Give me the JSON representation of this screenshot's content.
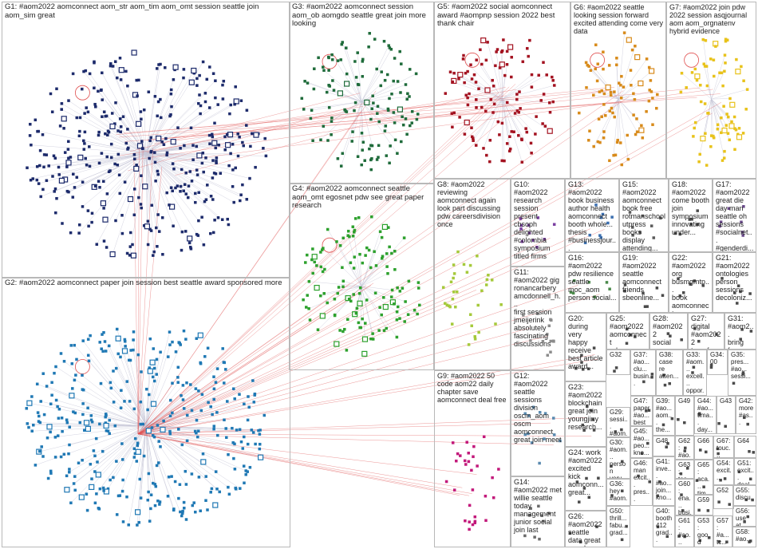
{
  "graph": {
    "edge_color": "#e05050",
    "groups": [
      {
        "id": "G1",
        "label": "G1: #aom2022 aomconnect aom_str aom_tim aom_omt session seattle join aom_sim great",
        "color": "#1c2a6b"
      },
      {
        "id": "G2",
        "label": "G2: #aom2022 aomconnect paper join session best seattle award sponsored more",
        "color": "#1f78b4"
      },
      {
        "id": "G3",
        "label": "G3: #aom2022 aomconnect session aom_ob aomgdo seattle great join more looking",
        "color": "#1e6b3a"
      },
      {
        "id": "G4",
        "label": "G4: #aom2022 aomconnect seattle aom_omt egosnet pdw see great paper research",
        "color": "#2ca02c"
      },
      {
        "id": "G5",
        "label": "G5: #aom2022 social aomconnect award #aompnp session 2022 best thank chair",
        "color": "#a31220"
      },
      {
        "id": "G6",
        "label": "G6: #aom2022 seattle looking session forward excited attending come very data",
        "color": "#d88a1a"
      },
      {
        "id": "G7",
        "label": "G7: #aom2022 join pdw 2022 session asqjournal aom aom_orgnatenv hybrid evidence",
        "color": "#e8c21a"
      },
      {
        "id": "G8",
        "label": "G8: #aom2022 reviewing aomconnect again look part discussing pdw careersdivision once",
        "color": "#a5c93a"
      },
      {
        "id": "G9",
        "label": "G9: #aom2022 50 code aom22 daily chapter save aomconnect deal free",
        "color": "#c2187a"
      },
      {
        "id": "G10",
        "label": "G10:\n#aom2022\nresearch\nsession present\ncbsoph\ndelighted\n#colombia\nsymposium\ntitled firms",
        "color": "#7a3fa0"
      },
      {
        "id": "G11",
        "label": "G11:\n#aom2022 gig\nronancarbery\namcdonnell_h...\nfirst session\njmeijerink\nabsolutely\nfascinating\ndiscussions",
        "color": "#8c8c8c"
      },
      {
        "id": "G12",
        "label": "G12:\n#aom2022\nseattle\nsessions\ndivision\noscm_aom\noscm\naomconnect\ngreat join meet",
        "color": "#5a8ab0"
      },
      {
        "id": "G13",
        "label": "G13:\n#aom2022\nbook business\nauthor health\naomconnect\nbooth whole...\nthesis\n#businessjour...",
        "color": "#3b6fb0"
      },
      {
        "id": "G14",
        "label": "G14:\n#aom2022 met\nwillie seattle\ntoday\nmanagement\njunior social\njoin last",
        "color": "#6a6a6a"
      },
      {
        "id": "G15",
        "label": "G15:\n#aom2022\naomconnect\nbook free\nrotmanschool\nutpress books\ndisplay\nattending...",
        "color": "#5a5a5a"
      },
      {
        "id": "G16",
        "label": "G16:\n#aom2022\npdw resilience\nseattle\nmoc_aom\nperson social...",
        "color": "#4a8a4a"
      },
      {
        "id": "G17",
        "label": "G17:\n#aom2022\ngreat die\nday man\nseattle oh\nsessions\n#socialnet...\n#genderdi...",
        "color": "#6a4a8a"
      },
      {
        "id": "G18",
        "label": "G18:\n#aom2022\ncome booth\njoin\nsymposium\ninnovating\nunder...",
        "color": "#4a4a4a"
      },
      {
        "id": "G19",
        "label": "G19:\n#aom2022\nseattle\naomconnect\nfriends\nsbeonline...",
        "color": "#4a4a4a"
      },
      {
        "id": "G20",
        "label": "G20:\nduring\nvery\nhappy\nreceive\nbest article\naward...",
        "color": "#4a4a4a"
      },
      {
        "id": "G21",
        "label": "G21:\n#aom2022\nontologies\nperson\nsessions\ndecoloniz...",
        "color": "#4a4a4a"
      },
      {
        "id": "G22",
        "label": "G22:\n#aom2022\norg\nbusmgmtp...\nbook\naomconnect...",
        "color": "#4a4a4a"
      },
      {
        "id": "G23",
        "label": "G23:\n#aom2022\nblockchain\ngreat join\nyoungjiny\nresearch...",
        "color": "#4a4a4a"
      },
      {
        "id": "G24",
        "label": "G24: work\n#aom2022\nexcited\nkick\naomconn...\ngreat...",
        "color": "#4a4a4a"
      },
      {
        "id": "G25",
        "label": "G25:\n#aom2022\naomconnect\npdw...",
        "color": "#4a4a4a"
      },
      {
        "id": "G26",
        "label": "G26:\n#aom2022\nseattle\ndata great\npanel...",
        "color": "#4a4a4a"
      },
      {
        "id": "G27",
        "label": "G27:\ndigital\n#aom2022\ntransform...",
        "color": "#4a4a4a"
      },
      {
        "id": "G28",
        "label": "G28:\n#aom2022\nsocial\npaper...",
        "color": "#4a4a4a"
      },
      {
        "id": "G29",
        "label": "G29:\nsessi...\n#aom...\n#futur...\nenjoyi...",
        "color": "#4a4a4a"
      },
      {
        "id": "G30",
        "label": "G30:\n#aom...\nperson\nvery\nhappy...",
        "color": "#4a4a4a"
      },
      {
        "id": "G31",
        "label": "G31:\n#aom2...\nbring\nface...",
        "color": "#4a4a4a"
      },
      {
        "id": "G32",
        "label": "G32",
        "color": "#4a4a4a"
      },
      {
        "id": "G33",
        "label": "G33:\n#aom...\nexcell...\noppor...",
        "color": "#4a4a4a"
      },
      {
        "id": "G34",
        "label": "G34:\n00",
        "color": "#4a4a4a"
      },
      {
        "id": "G35",
        "label": "G35:\npres...\n#ao...\nsessi...",
        "color": "#4a4a4a"
      },
      {
        "id": "G36",
        "label": "G36:\nhey\n#aom...\nenjoy...",
        "color": "#4a4a4a"
      },
      {
        "id": "G37",
        "label": "G37:\n#ao...\nclu...\nbusin...",
        "color": "#4a4a4a"
      },
      {
        "id": "G38",
        "label": "G38:\ncase\nre\natten...",
        "color": "#4a4a4a"
      },
      {
        "id": "G39",
        "label": "G39:\n#ao...\naom...\nthe...",
        "color": "#4a4a4a"
      },
      {
        "id": "G40",
        "label": "G40:\nbooth\n412\ngrad...",
        "color": "#4a4a4a"
      },
      {
        "id": "G41",
        "label": "G41:\ninve...\n#ao...\njoin...\nkno...",
        "color": "#4a4a4a"
      },
      {
        "id": "G42",
        "label": "G42:\nmore\n#as...",
        "color": "#4a4a4a"
      },
      {
        "id": "G43",
        "label": "G43",
        "color": "#4a4a4a"
      },
      {
        "id": "G44",
        "label": "G44:\n#ao...\ntima...\nday...",
        "color": "#4a4a4a"
      },
      {
        "id": "G45",
        "label": "G45:\n#ao...\npeo...\nkno...",
        "color": "#4a4a4a"
      },
      {
        "id": "G46",
        "label": "G46:\nman\nexcit...\npres...",
        "color": "#4a4a4a"
      },
      {
        "id": "G47",
        "label": "G47:\npaper\n#ao...\nbest",
        "color": "#4a4a4a"
      },
      {
        "id": "G48",
        "label": "G48",
        "color": "#4a4a4a"
      },
      {
        "id": "G49",
        "label": "G49",
        "color": "#4a4a4a"
      },
      {
        "id": "G50",
        "label": "G50:\nthrill...\nfabu...\ngrad...",
        "color": "#4a4a4a"
      },
      {
        "id": "G51",
        "label": "G51:\nexcit...\ndeal...",
        "color": "#4a4a4a"
      },
      {
        "id": "G52",
        "label": "G52",
        "color": "#4a4a4a"
      },
      {
        "id": "G53",
        "label": "G53:\ngood\nmor...",
        "color": "#4a4a4a"
      },
      {
        "id": "G54",
        "label": "G54:\nexcit...",
        "color": "#4a4a4a"
      },
      {
        "id": "G55",
        "label": "G55:\ndiscu...",
        "color": "#4a4a4a"
      },
      {
        "id": "G56",
        "label": "G56:\nuse at...",
        "color": "#4a4a4a"
      },
      {
        "id": "G57",
        "label": "G57:\n#a...\ntc...",
        "color": "#4a4a4a"
      },
      {
        "id": "G58",
        "label": "G58:\n#ao...",
        "color": "#4a4a4a"
      },
      {
        "id": "G59",
        "label": "G59",
        "color": "#4a4a4a"
      },
      {
        "id": "G60",
        "label": "G60:\nena...\nbusi...",
        "color": "#4a4a4a"
      },
      {
        "id": "G61",
        "label": "G61:\n#ao...\nsch...",
        "color": "#4a4a4a"
      },
      {
        "id": "G62",
        "label": "G62:\n#ao...\nhea...",
        "color": "#4a4a4a"
      },
      {
        "id": "G63",
        "label": "G63:\ntea...\natte...",
        "color": "#4a4a4a"
      },
      {
        "id": "G64",
        "label": "G64",
        "color": "#4a4a4a"
      },
      {
        "id": "G65",
        "label": "G65:\naca...\ntim...",
        "color": "#4a4a4a"
      },
      {
        "id": "G66",
        "label": "G66",
        "color": "#4a4a4a"
      },
      {
        "id": "G67",
        "label": "G67:\ntouc...",
        "color": "#4a4a4a"
      }
    ]
  }
}
